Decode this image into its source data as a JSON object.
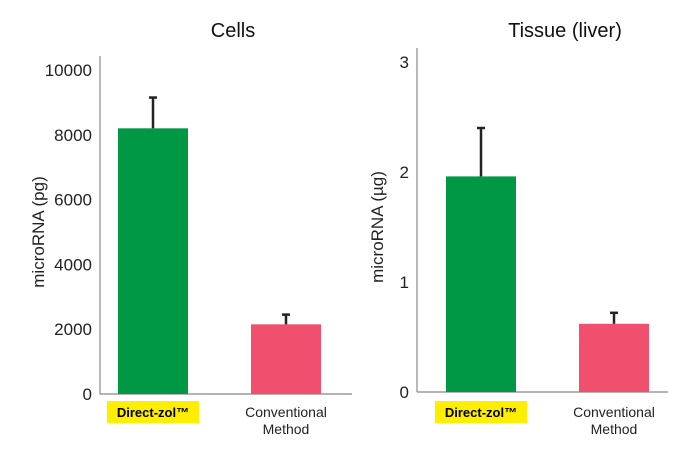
{
  "chart_data": [
    {
      "type": "bar",
      "title": "Cells",
      "ylabel": "microRNA (pg)",
      "categories": [
        "Direct-zol™",
        "Conventional Method"
      ],
      "category_lines": [
        [
          "Direct-zol™"
        ],
        [
          "Conventional",
          "Method"
        ]
      ],
      "highlight_category": "Direct-zol™",
      "values": [
        8200,
        2150
      ],
      "errors": [
        950,
        300
      ],
      "ylim": [
        0,
        10000
      ],
      "yticks": [
        0,
        2000,
        4000,
        6000,
        8000,
        10000
      ],
      "colors": [
        "#009845",
        "#f0506e"
      ]
    },
    {
      "type": "bar",
      "title": "Tissue (liver)",
      "ylabel": "microRNA (µg)",
      "categories": [
        "Direct-zol™",
        "Conventional Method"
      ],
      "category_lines": [
        [
          "Direct-zol™"
        ],
        [
          "Conventional",
          "Method"
        ]
      ],
      "highlight_category": "Direct-zol™",
      "values": [
        1.96,
        0.62
      ],
      "errors": [
        0.44,
        0.1
      ],
      "ylim": [
        0,
        3
      ],
      "yticks": [
        0,
        1,
        2,
        3
      ],
      "colors": [
        "#009845",
        "#f0506e"
      ]
    }
  ],
  "highlight_color": "#ffee00"
}
